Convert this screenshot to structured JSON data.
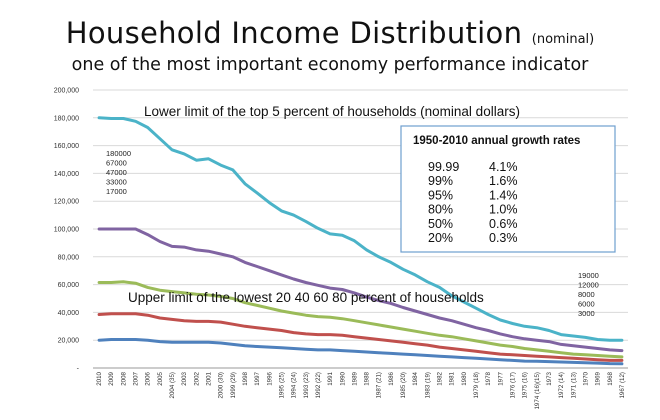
{
  "title": {
    "main": "Household Income Distribution",
    "suffix": "(nominal)",
    "subtitle": "one of the most important economy performance indicator"
  },
  "chart_data": {
    "type": "line",
    "ylim": [
      0,
      200000
    ],
    "y_ticks": [
      "-",
      "20,000",
      "40,000",
      "60,000",
      "80,000",
      "100,000",
      "120,000",
      "140,000",
      "160,000",
      "180,000",
      "200,000"
    ],
    "gridlines": true,
    "categories": [
      "2010",
      "2009",
      "2008",
      "2007",
      "2006",
      "2005",
      "2004 (35)",
      "2003",
      "2002",
      "2001",
      "2000 (30)",
      "1999 (29)",
      "1998",
      "1997",
      "1996",
      "1995 (25)",
      "1994 (24)",
      "1993 (23)",
      "1992 (22)",
      "1991",
      "1990",
      "1989",
      "1988",
      "1987 (21)",
      "1986",
      "1985 (20)",
      "1984",
      "1983 (19)",
      "1982",
      "1981",
      "1980",
      "1979 (18)",
      "1978",
      "1977",
      "1976 (17)",
      "1975 (16)",
      "1974 (16)(15)",
      "1973",
      "1972 (14)",
      "1971 (13)",
      "1970",
      "1969",
      "1968",
      "1967 (12)"
    ],
    "x_tick_labels": [
      "2010",
      "2009",
      "2008",
      "2007",
      "2006",
      "2005",
      "2004 (35)",
      "2003",
      "2002",
      "2001",
      "2000 (30)",
      "1999 (29)",
      "1998",
      "1997",
      "1996",
      "1995 (25)",
      "1994 (24)",
      "1993 (23)",
      "1992 (22)",
      "1991",
      "1990",
      "1989",
      "1988",
      "1987 (21)",
      "1986",
      "1985 (20)",
      "1984",
      "1983 (19)",
      "1982",
      "1981",
      "1980",
      "1979 (18)",
      "1978",
      "1977",
      "1976 (17)",
      "1975 (16)",
      "1974 (16)(15)",
      "1973",
      "1972 (14)",
      "1971 (13)",
      "1970",
      "1969",
      "1968",
      "1967 (12)"
    ],
    "series": [
      {
        "name": "Top 5 percent lower limit",
        "color": "#4bb3c8",
        "values": [
          180000,
          179500,
          179500,
          177500,
          173000,
          165000,
          157000,
          154000,
          149500,
          150500,
          146000,
          142500,
          132500,
          126000,
          119000,
          113000,
          110000,
          105500,
          100500,
          96500,
          95500,
          91500,
          85000,
          80000,
          76000,
          71000,
          67000,
          62000,
          58000,
          52000,
          47500,
          43000,
          38500,
          34500,
          32000,
          30000,
          29000,
          27000,
          24000,
          23000,
          22000,
          20500,
          20000,
          20000
        ]
      },
      {
        "name": "80 percent upper limit",
        "color": "#8064a2",
        "values": [
          100000,
          100000,
          100000,
          100000,
          96000,
          91000,
          87500,
          87000,
          85000,
          84000,
          82000,
          80000,
          76000,
          73000,
          70000,
          67000,
          64000,
          61500,
          59500,
          57500,
          56500,
          54000,
          51000,
          48500,
          46500,
          43500,
          41000,
          38500,
          36000,
          34000,
          31500,
          29000,
          27000,
          24500,
          22500,
          21000,
          20000,
          19000,
          17000,
          16000,
          15000,
          14000,
          13000,
          12500
        ]
      },
      {
        "name": "60 percent upper limit",
        "color": "#9bbb59",
        "values": [
          61500,
          61500,
          62000,
          61000,
          58000,
          56000,
          55000,
          54000,
          53000,
          52500,
          51500,
          50000,
          47000,
          45000,
          43000,
          41000,
          39500,
          38000,
          37000,
          36500,
          35500,
          34000,
          32500,
          31000,
          29500,
          28000,
          26500,
          25000,
          23500,
          22500,
          21000,
          19500,
          18000,
          16500,
          15500,
          14000,
          13000,
          12000,
          11000,
          10000,
          9500,
          9000,
          8500,
          8000
        ]
      },
      {
        "name": "40 percent upper limit",
        "color": "#c0504d",
        "values": [
          38500,
          39000,
          39000,
          39000,
          38000,
          36000,
          35000,
          34000,
          33500,
          33500,
          33000,
          31500,
          30000,
          29000,
          28000,
          27000,
          25500,
          24500,
          24000,
          24000,
          23500,
          22500,
          21500,
          20500,
          19500,
          18500,
          17500,
          16500,
          15000,
          14000,
          13000,
          12000,
          11000,
          10000,
          9500,
          9000,
          8500,
          8000,
          7500,
          7000,
          6500,
          6000,
          5500,
          5500
        ]
      },
      {
        "name": "20 percent upper limit",
        "color": "#4f81bd",
        "values": [
          20000,
          20500,
          20500,
          20500,
          20000,
          19000,
          18500,
          18500,
          18500,
          18500,
          18000,
          17000,
          16000,
          15500,
          15000,
          14500,
          14000,
          13500,
          13000,
          13000,
          12500,
          12000,
          11500,
          11000,
          10500,
          10000,
          9500,
          9000,
          8500,
          8000,
          7500,
          7000,
          6500,
          6000,
          5500,
          5000,
          4800,
          4600,
          4300,
          4000,
          3800,
          3500,
          3200,
          3000
        ]
      }
    ],
    "annotations": {
      "top_label": "Lower limit of the top 5 percent of households (nominal dollars)",
      "bottom_label": "Upper limit of the lowest 20 40  60  80 percent of households",
      "left_values": [
        "180000",
        "67000",
        "47000",
        "33000",
        "17000"
      ],
      "right_values": [
        "19000",
        "12000",
        "8000",
        "6000",
        "3000"
      ]
    },
    "growth_table": {
      "title": "1950-2010 annual growth rates",
      "rows": [
        {
          "pct": "99.99",
          "rate": "4.1%"
        },
        {
          "pct": "99%",
          "rate": "1.6%"
        },
        {
          "pct": "95%",
          "rate": "1.4%"
        },
        {
          "pct": "80%",
          "rate": "1.0%"
        },
        {
          "pct": "50%",
          "rate": "0.6%"
        },
        {
          "pct": "20%",
          "rate": "0.3%"
        }
      ]
    }
  }
}
